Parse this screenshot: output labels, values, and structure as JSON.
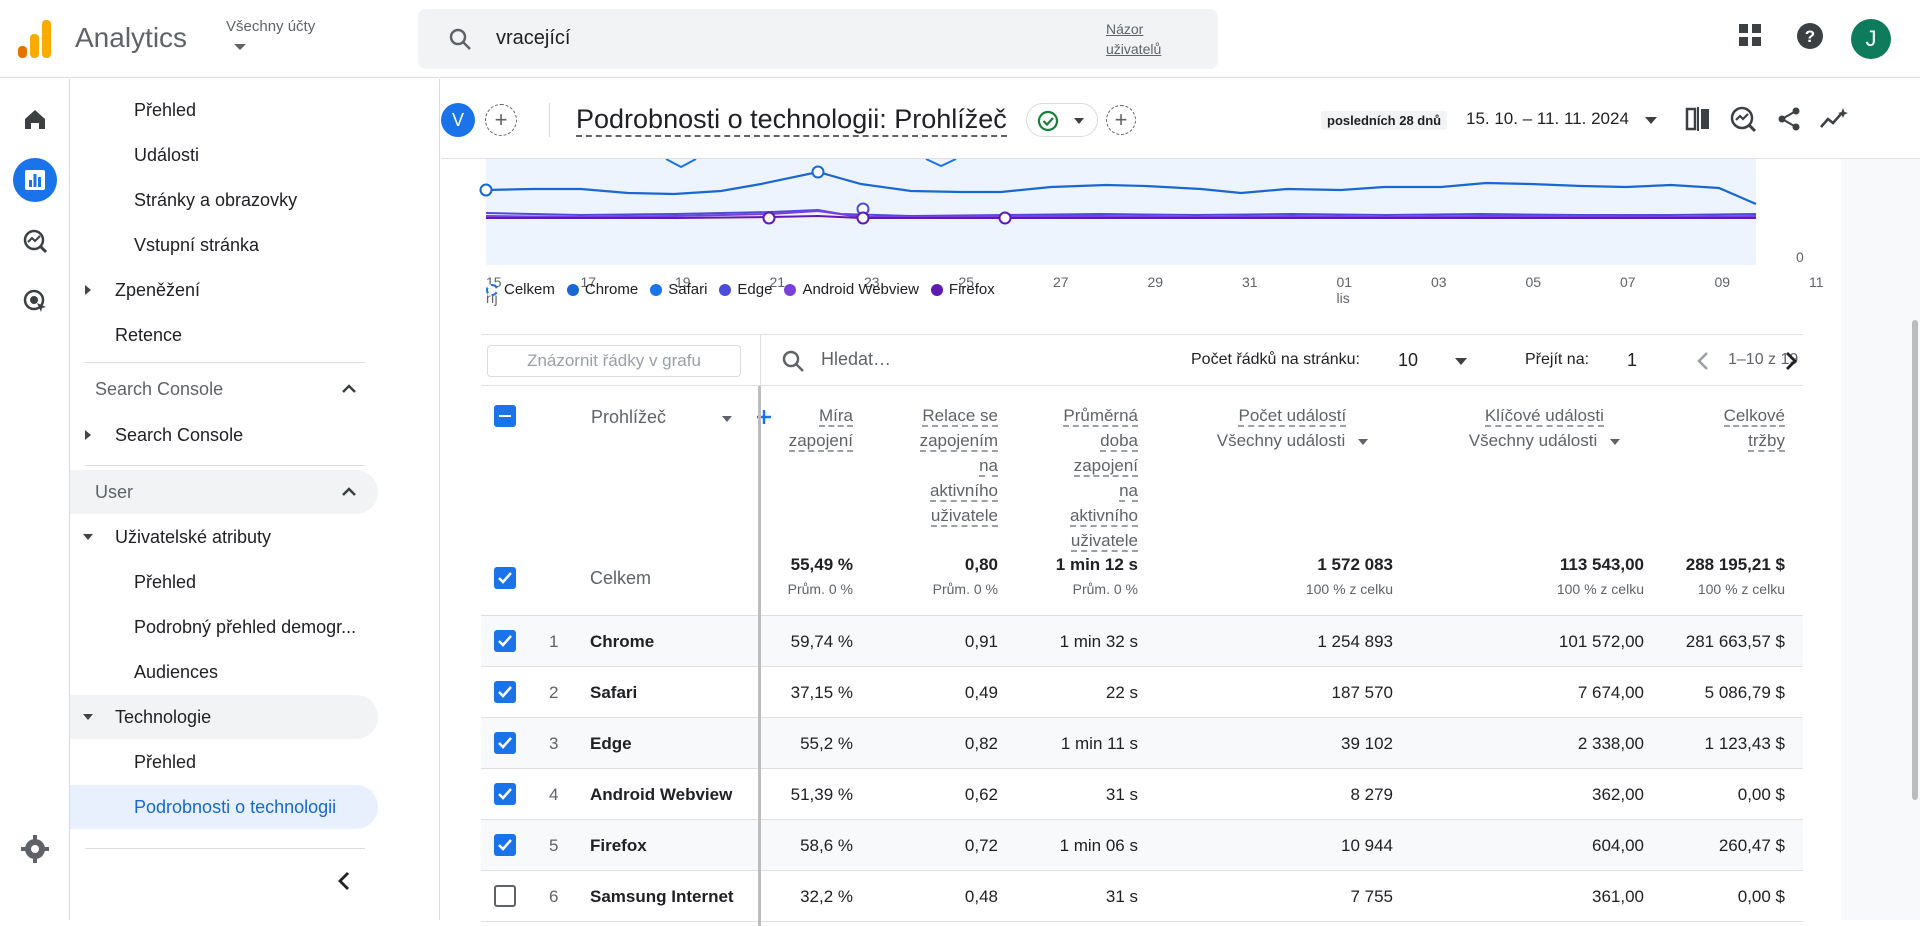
{
  "app": {
    "title": "Analytics",
    "account_label": "Všechny účty"
  },
  "search": {
    "value": "vracející",
    "link": "Názor uživatelů"
  },
  "user": {
    "initial": "J"
  },
  "nav": {
    "items_top": [
      "Přehled",
      "Události",
      "Stránky a obrazovky",
      "Vstupní stránka"
    ],
    "monetization": "Zpeněžení",
    "retention": "Retence",
    "search_console_section": "Search Console",
    "search_console_item": "Search Console",
    "user_section": "User",
    "user_attributes": "Uživatelské atributy",
    "user_items": [
      "Přehled",
      "Podrobný přehled demogr...",
      "Audiences"
    ],
    "technology": "Technologie",
    "tech_items": [
      "Přehled",
      "Podrobnosti o technologii"
    ]
  },
  "header": {
    "segment_initial": "V",
    "title": "Podrobnosti o technologii: Prohlížeč",
    "date_label": "posledních 28 dnů",
    "date_range": "15. 10. – 11. 11. 2024"
  },
  "chart_data": {
    "type": "line",
    "x": [
      "15 říj",
      "17",
      "19",
      "21",
      "23",
      "25",
      "27",
      "29",
      "31",
      "01 lis",
      "03",
      "05",
      "07",
      "09",
      "11"
    ],
    "x_ticks": [
      {
        "top": "15",
        "bottom": "říj"
      },
      {
        "top": "17"
      },
      {
        "top": "19"
      },
      {
        "top": "21"
      },
      {
        "top": "23"
      },
      {
        "top": "25"
      },
      {
        "top": "27"
      },
      {
        "top": "29"
      },
      {
        "top": "31"
      },
      {
        "top": "01",
        "bottom": "lis"
      },
      {
        "top": "03"
      },
      {
        "top": "05"
      },
      {
        "top": "07"
      },
      {
        "top": "09"
      },
      {
        "top": "11"
      }
    ],
    "y_tick": "0",
    "legend": [
      "Celkem",
      "Chrome",
      "Safari",
      "Edge",
      "Android Webview",
      "Firefox"
    ],
    "colors": {
      "Celkem": "#1a73e8",
      "Chrome": "#1967d2",
      "Safari": "#1a73e8",
      "Edge": "#4b4cdc",
      "Android Webview": "#7b3fdc",
      "Firefox": "#5f1ab0"
    }
  },
  "toolbar": {
    "plot_rows": "Znázornit řádky v grafu",
    "search_placeholder": "Hledat…",
    "rows_label": "Počet řádků na stránku:",
    "rows_value": "10",
    "goto_label": "Přejít na:",
    "goto_value": "1",
    "range": "1–10 z 19"
  },
  "table": {
    "dimension": "Prohlížeč",
    "columns": [
      {
        "lines": [
          "Míra",
          "zapojení"
        ]
      },
      {
        "lines": [
          "Relace se",
          "zapojením",
          "na",
          "aktivního",
          "uživatele"
        ]
      },
      {
        "lines": [
          "Průměrná",
          "doba",
          "zapojení",
          "na",
          "aktivního",
          "uživatele"
        ]
      },
      {
        "lines": [
          "Počet událostí"
        ],
        "sub": "Všechny události"
      },
      {
        "lines": [
          "Klíčové události"
        ],
        "sub": "Všechny události"
      },
      {
        "lines": [
          "Celkové",
          "tržby"
        ]
      }
    ],
    "total": {
      "label": "Celkem",
      "values": [
        "55,49 %",
        "0,80",
        "1 min 12 s",
        "1 572 083",
        "113 543,00",
        "288 195,21 $"
      ],
      "subs": [
        "Prům. 0 %",
        "Prům. 0 %",
        "Prům. 0 %",
        "100 % z celku",
        "100 % z celku",
        "100 % z celku"
      ]
    },
    "rows": [
      {
        "n": "1",
        "name": "Chrome",
        "v": [
          "59,74 %",
          "0,91",
          "1 min 32 s",
          "1 254 893",
          "101 572,00",
          "281 663,57 $"
        ]
      },
      {
        "n": "2",
        "name": "Safari",
        "v": [
          "37,15 %",
          "0,49",
          "22 s",
          "187 570",
          "7 674,00",
          "5 086,79 $"
        ]
      },
      {
        "n": "3",
        "name": "Edge",
        "v": [
          "55,2 %",
          "0,82",
          "1 min 11 s",
          "39 102",
          "2 338,00",
          "1 123,43 $"
        ]
      },
      {
        "n": "4",
        "name": "Android Webview",
        "v": [
          "51,39 %",
          "0,62",
          "31 s",
          "8 279",
          "362,00",
          "0,00 $"
        ]
      },
      {
        "n": "5",
        "name": "Firefox",
        "v": [
          "58,6 %",
          "0,72",
          "1 min 06 s",
          "10 944",
          "604,00",
          "260,47 $"
        ]
      },
      {
        "n": "6",
        "name": "Samsung Internet",
        "v": [
          "32,2 %",
          "0,48",
          "31 s",
          "7 755",
          "361,00",
          "0,00 $"
        ]
      }
    ]
  }
}
